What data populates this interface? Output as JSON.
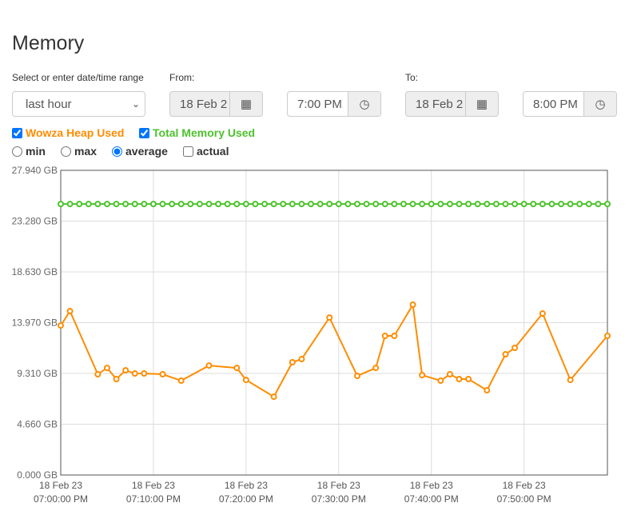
{
  "title": "Memory",
  "range": {
    "label": "Select or enter date/time range",
    "value": "last hour"
  },
  "from": {
    "label": "From:",
    "date": "18 Feb 2",
    "time": "7:00 PM"
  },
  "to": {
    "label": "To:",
    "date": "18 Feb 2",
    "time": "8:00 PM"
  },
  "series_toggles": [
    {
      "label": "Wowza Heap Used",
      "checked": true,
      "color": "#ff8c00"
    },
    {
      "label": "Total Memory Used",
      "checked": true,
      "color": "#4cc32b"
    }
  ],
  "modes": [
    {
      "label": "min",
      "selected": false
    },
    {
      "label": "max",
      "selected": false
    },
    {
      "label": "average",
      "selected": true
    }
  ],
  "actual": {
    "label": "actual",
    "checked": false
  },
  "chart_data": {
    "type": "line",
    "ylim": [
      0,
      27.94
    ],
    "y_ticks": [
      "0.000 GB",
      "4.660 GB",
      "9.310 GB",
      "13.970 GB",
      "18.630 GB",
      "23.280 GB",
      "27.940 GB"
    ],
    "x_ticks": [
      [
        "18 Feb 23",
        "07:00:00 PM"
      ],
      [
        "18 Feb 23",
        "07:10:00 PM"
      ],
      [
        "18 Feb 23",
        "07:20:00 PM"
      ],
      [
        "18 Feb 23",
        "07:30:00 PM"
      ],
      [
        "18 Feb 23",
        "07:40:00 PM"
      ],
      [
        "18 Feb 23",
        "07:50:00 PM"
      ]
    ],
    "x_unit": "minutes after 07:00:00 PM",
    "grid": true,
    "series": [
      {
        "name": "Wowza Heap Used",
        "color": "#ff8c00",
        "points": [
          [
            0,
            13.71
          ],
          [
            1,
            15.03
          ],
          [
            4,
            9.24
          ],
          [
            5,
            9.82
          ],
          [
            6,
            8.8
          ],
          [
            7,
            9.6
          ],
          [
            8,
            9.31
          ],
          [
            9,
            9.31
          ],
          [
            11,
            9.24
          ],
          [
            13,
            8.65
          ],
          [
            16,
            10.04
          ],
          [
            19,
            9.82
          ],
          [
            20,
            8.72
          ],
          [
            23,
            7.18
          ],
          [
            25,
            10.34
          ],
          [
            26,
            10.63
          ],
          [
            29,
            14.44
          ],
          [
            32,
            9.09
          ],
          [
            34,
            9.82
          ],
          [
            35,
            12.76
          ],
          [
            36,
            12.76
          ],
          [
            38,
            15.62
          ],
          [
            39,
            9.16
          ],
          [
            41,
            8.65
          ],
          [
            42,
            9.24
          ],
          [
            43,
            8.8
          ],
          [
            44,
            8.8
          ],
          [
            46,
            7.77
          ],
          [
            48,
            11.07
          ],
          [
            49,
            11.66
          ],
          [
            52,
            14.81
          ],
          [
            55,
            8.72
          ],
          [
            59,
            12.76
          ]
        ]
      },
      {
        "name": "Total Memory Used",
        "color": "#4cc32b",
        "constant": 24.85,
        "count": 60
      }
    ]
  }
}
